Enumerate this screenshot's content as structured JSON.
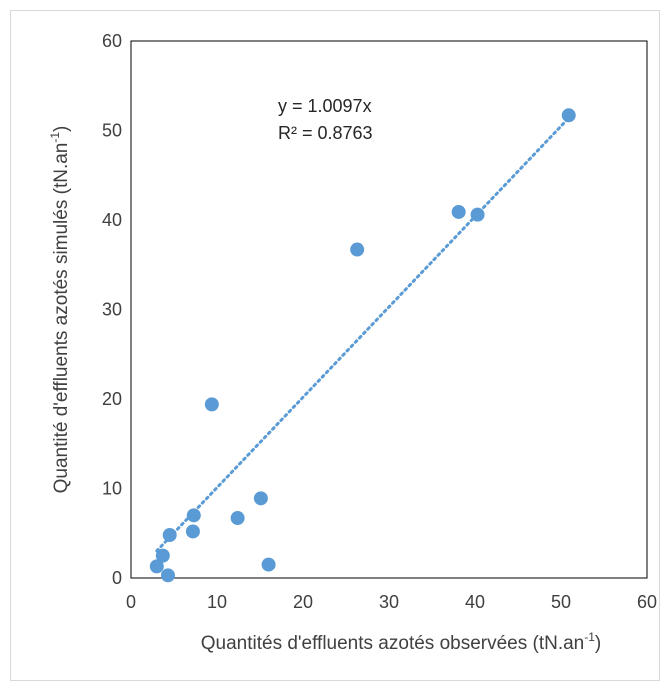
{
  "chart_data": {
    "type": "scatter",
    "xlabel": "Quantités d'effluents azotés observées (tN.an",
    "xlabel_sup": "-1",
    "xlabel_end": ")",
    "ylabel": "Quantité d'effluents azotés simulés  (tN.an",
    "ylabel_sup": "-1",
    "ylabel_end": ")",
    "xlim": [
      0,
      60
    ],
    "ylim": [
      0,
      60
    ],
    "xticks": [
      "0",
      "10",
      "20",
      "30",
      "40",
      "50",
      "60"
    ],
    "yticks": [
      "0",
      "10",
      "20",
      "30",
      "40",
      "50",
      "60"
    ],
    "grid": false,
    "marker_color": "#5b9bd5",
    "trendline": {
      "type": "linear-through-origin",
      "slope": 1.0097,
      "x_range": [
        3,
        51
      ],
      "style": "dotted",
      "color": "#5b9bd5"
    },
    "equation": "y = 1.0097x",
    "r2_label": "R² = 0.8763",
    "points": [
      {
        "x": 3.0,
        "y": 1.3
      },
      {
        "x": 3.7,
        "y": 2.5
      },
      {
        "x": 4.3,
        "y": 0.3
      },
      {
        "x": 4.5,
        "y": 4.8
      },
      {
        "x": 7.2,
        "y": 5.2
      },
      {
        "x": 7.3,
        "y": 7.0
      },
      {
        "x": 9.4,
        "y": 19.4
      },
      {
        "x": 12.4,
        "y": 6.7
      },
      {
        "x": 15.1,
        "y": 8.9
      },
      {
        "x": 16.0,
        "y": 1.5
      },
      {
        "x": 26.3,
        "y": 36.7
      },
      {
        "x": 38.1,
        "y": 40.9
      },
      {
        "x": 40.3,
        "y": 40.6
      },
      {
        "x": 50.9,
        "y": 51.7
      }
    ]
  }
}
